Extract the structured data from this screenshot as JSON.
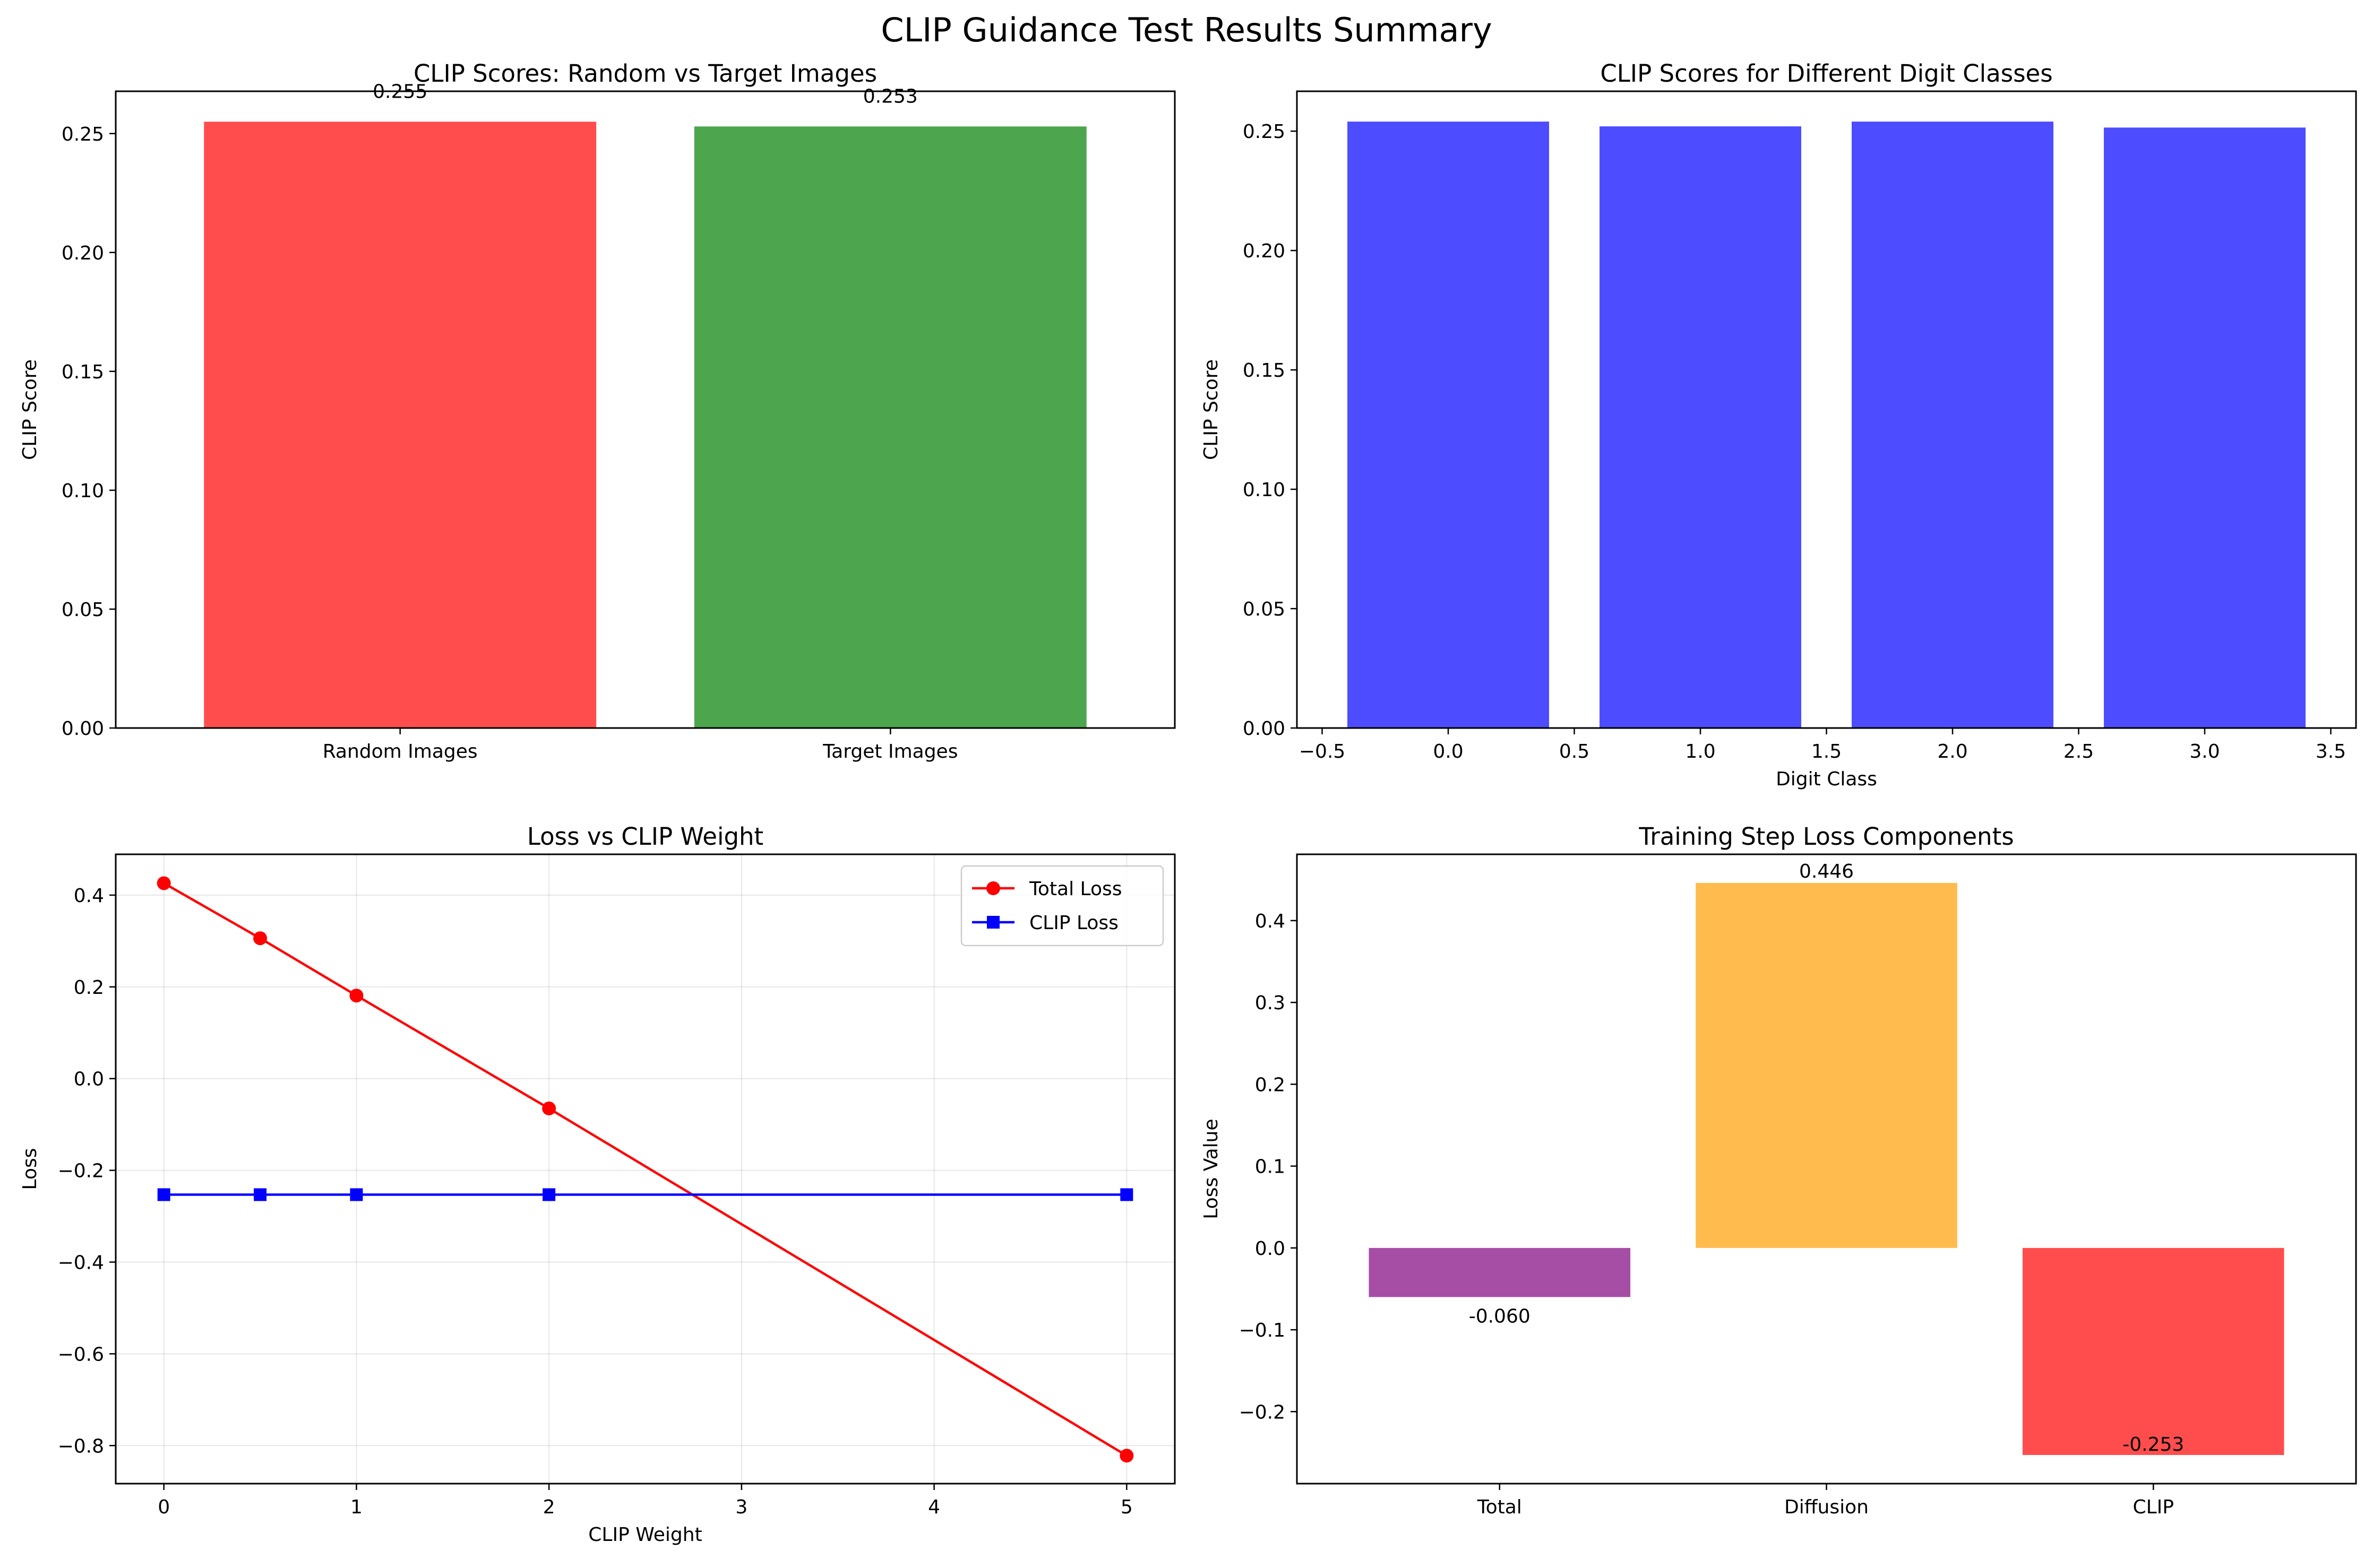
{
  "suptitle": "CLIP Guidance Test Results Summary",
  "chart_data": [
    {
      "type": "bar",
      "title": "CLIP Scores: Random vs Target Images",
      "xlabel": "",
      "ylabel": "CLIP Score",
      "categories": [
        "Random Images",
        "Target Images"
      ],
      "values": [
        0.255,
        0.253
      ],
      "value_labels": [
        "0.255",
        "0.253"
      ],
      "colors": [
        "#ff4d4d",
        "#4da64d"
      ],
      "ylim": [
        0,
        0.2678
      ],
      "yticks": [
        0.0,
        0.05,
        0.1,
        0.15,
        0.2,
        0.25
      ],
      "ytick_labels": [
        "0.00",
        "0.05",
        "0.10",
        "0.15",
        "0.20",
        "0.25"
      ]
    },
    {
      "type": "bar",
      "title": "CLIP Scores for Different Digit Classes",
      "xlabel": "Digit Class",
      "ylabel": "CLIP Score",
      "x": [
        0,
        1,
        2,
        3
      ],
      "values": [
        0.254,
        0.252,
        0.254,
        0.2515
      ],
      "colors": [
        "#4d4dff",
        "#4d4dff",
        "#4d4dff",
        "#4d4dff"
      ],
      "xlim": [
        -0.6,
        3.6
      ],
      "ylim": [
        0,
        0.2667
      ],
      "xticks": [
        -0.5,
        0.0,
        0.5,
        1.0,
        1.5,
        2.0,
        2.5,
        3.0,
        3.5
      ],
      "xtick_labels": [
        "−0.5",
        "0.0",
        "0.5",
        "1.0",
        "1.5",
        "2.0",
        "2.5",
        "3.0",
        "3.5"
      ],
      "yticks": [
        0.0,
        0.05,
        0.1,
        0.15,
        0.2,
        0.25
      ],
      "ytick_labels": [
        "0.00",
        "0.05",
        "0.10",
        "0.15",
        "0.20",
        "0.25"
      ]
    },
    {
      "type": "line",
      "title": "Loss vs CLIP Weight",
      "xlabel": "CLIP Weight",
      "ylabel": "Loss",
      "grid": true,
      "legend": "top-right",
      "xlim": [
        -0.25,
        5.25
      ],
      "ylim": [
        -0.883,
        0.489
      ],
      "xticks": [
        0,
        1,
        2,
        3,
        4,
        5
      ],
      "xtick_labels": [
        "0",
        "1",
        "2",
        "3",
        "4",
        "5"
      ],
      "yticks": [
        -0.8,
        -0.6,
        -0.4,
        -0.2,
        0.0,
        0.2,
        0.4
      ],
      "ytick_labels": [
        "−0.8",
        "−0.6",
        "−0.4",
        "−0.2",
        "0.0",
        "0.2",
        "0.4"
      ],
      "series": [
        {
          "name": "Total Loss",
          "color": "#ff0000",
          "marker": "circle",
          "x": [
            0,
            0.5,
            1,
            2,
            5
          ],
          "y": [
            0.426,
            0.306,
            0.181,
            -0.065,
            -0.822
          ]
        },
        {
          "name": "CLIP Loss",
          "color": "#0000ff",
          "marker": "square",
          "x": [
            0,
            0.5,
            1,
            2,
            5
          ],
          "y": [
            -0.253,
            -0.253,
            -0.253,
            -0.253,
            -0.253
          ]
        }
      ]
    },
    {
      "type": "bar",
      "title": "Training Step Loss Components",
      "xlabel": "",
      "ylabel": "Loss Value",
      "categories": [
        "Total",
        "Diffusion",
        "CLIP"
      ],
      "values": [
        -0.06,
        0.446,
        -0.253
      ],
      "value_labels": [
        "-0.060",
        "0.446",
        "-0.253"
      ],
      "colors": [
        "#a64da6",
        "#ffbb4d",
        "#ff4d4d"
      ],
      "ylim": [
        -0.288,
        0.481
      ],
      "yticks": [
        -0.2,
        -0.1,
        0.0,
        0.1,
        0.2,
        0.3,
        0.4
      ],
      "ytick_labels": [
        "−0.2",
        "−0.1",
        "0.0",
        "0.1",
        "0.2",
        "0.3",
        "0.4"
      ]
    }
  ]
}
